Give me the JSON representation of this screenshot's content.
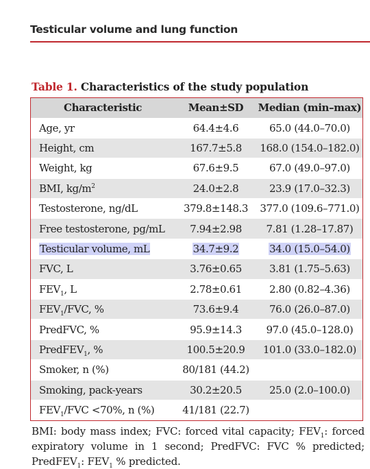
{
  "running_head": "Testicular volume and lung function",
  "table": {
    "number": "Table 1.",
    "title": "Characteristics of the study population",
    "headers": [
      "Characteristic",
      "Mean±SD",
      "Median (min–max)"
    ],
    "rows": [
      {
        "label": "Age, yr",
        "mean_sd": "64.4±4.6",
        "median": "65.0 (44.0–70.0)"
      },
      {
        "label": "Height, cm",
        "mean_sd": "167.7±5.8",
        "median": "168.0 (154.0–182.0)"
      },
      {
        "label": "Weight, kg",
        "mean_sd": "67.6±9.5",
        "median": "67.0 (49.0–97.0)"
      },
      {
        "label_main": "BMI, kg/m",
        "label_sup": "2",
        "mean_sd": "24.0±2.8",
        "median": "23.9 (17.0–32.3)"
      },
      {
        "label": "Testosterone, ng/dL",
        "mean_sd": "379.8±148.3",
        "median": "377.0 (109.6–771.0)"
      },
      {
        "label": "Free testosterone, pg/mL",
        "mean_sd": "7.94±2.98",
        "median": "7.81 (1.28–17.87)"
      },
      {
        "label": "Testicular volume, mL",
        "mean_sd": "34.7±9.2",
        "median": "34.0 (15.0–54.0)",
        "highlighted": true
      },
      {
        "label": "FVC, L",
        "mean_sd": "3.76±0.65",
        "median": "3.81 (1.75–5.63)"
      },
      {
        "label_pre": "FEV",
        "label_sub": "1",
        "label_post": ", L",
        "mean_sd": "2.78±0.61",
        "median": "2.80 (0.82–4.36)"
      },
      {
        "label_pre": "FEV",
        "label_sub": "1",
        "label_post": "/FVC, %",
        "mean_sd": "73.6±9.4",
        "median": "76.0 (26.0–87.0)"
      },
      {
        "label": "PredFVC, %",
        "mean_sd": "95.9±14.3",
        "median": "97.0 (45.0–128.0)"
      },
      {
        "label_pre": "PredFEV",
        "label_sub": "1",
        "label_post": ", %",
        "mean_sd": "100.5±20.9",
        "median": "101.0 (33.0–182.0)"
      },
      {
        "label": "Smoker, n (%)",
        "mean_sd": "80/181 (44.2)",
        "median": ""
      },
      {
        "label": "Smoking, pack-years",
        "mean_sd": "30.2±20.5",
        "median": "25.0 (2.0–100.0)"
      },
      {
        "label_pre": "FEV",
        "label_sub": "1",
        "label_post": "/FVC <70%, n (%)",
        "mean_sd": "41/181 (22.7)",
        "median": ""
      }
    ]
  },
  "footnote": {
    "p1": "BMI: body mass index; FVC: forced vital capacity; FEV",
    "sub1": "1",
    "p2": ": forced expiratory volume in 1 second; PredFVC: FVC % predicted; PredFEV",
    "sub2": "1",
    "p3": ": FEV",
    "sub3": "1",
    "p4": " % predicted."
  },
  "colors": {
    "accent": "#c0282e",
    "row_shade": "#e4e4e4",
    "header_shade": "#d7d7d7",
    "highlight": "#cfd2f7"
  }
}
